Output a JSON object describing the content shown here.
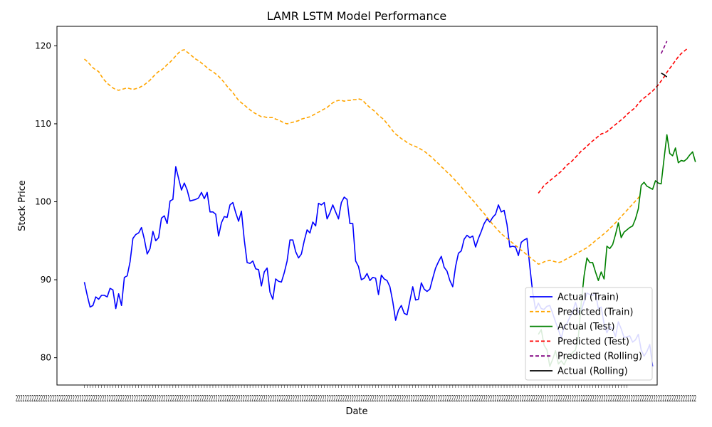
{
  "chart_data": {
    "type": "line",
    "title": "LAMR LSTM Model Performance",
    "xlabel": "Date",
    "ylabel": "Stock Price",
    "ylim": [
      76.5,
      122.5
    ],
    "xlim": [
      -9.6,
      200.6
    ],
    "yticks": [
      80,
      90,
      100,
      110,
      120
    ],
    "x_tick_label_text": "2",
    "legend_position": "lower-right",
    "colors": {
      "actual_train": "#0000ff",
      "predicted_train": "#ffa500",
      "actual_test": "#008000",
      "predicted_test": "#ff0000",
      "predicted_rolling": "#800080",
      "actual_rolling": "#000000"
    },
    "series": [
      {
        "name": "Actual (Train)",
        "style": "solid",
        "color": "#0000ff",
        "x_start": 0,
        "values": [
          89.7,
          88.0,
          86.5,
          86.7,
          87.8,
          87.5,
          88.0,
          88.0,
          87.8,
          88.9,
          88.7,
          86.3,
          88.2,
          86.7,
          90.3,
          90.5,
          92.3,
          95.3,
          95.8,
          96.0,
          96.7,
          95.2,
          93.3,
          94.0,
          96.2,
          95.0,
          95.4,
          97.9,
          98.2,
          97.2,
          100.1,
          100.3,
          104.5,
          103.0,
          101.5,
          102.4,
          101.5,
          100.1,
          100.2,
          100.3,
          100.5,
          101.2,
          100.4,
          101.2,
          98.7,
          98.7,
          98.4,
          95.6,
          97.3,
          98.1,
          98.0,
          99.6,
          99.9,
          98.6,
          97.5,
          98.8,
          95.1,
          92.2,
          92.1,
          92.4,
          91.4,
          91.3,
          89.2,
          91.0,
          91.5,
          88.4,
          87.5,
          90.1,
          89.8,
          89.7,
          90.9,
          92.4,
          95.1,
          95.1,
          93.6,
          92.8,
          93.3,
          95.0,
          96.4,
          96.0,
          97.4,
          96.9,
          99.8,
          99.6,
          99.9,
          97.8,
          98.6,
          99.6,
          98.7,
          97.8,
          99.9,
          100.6,
          100.3,
          97.2,
          97.2,
          92.4,
          91.7,
          90.0,
          90.2,
          90.8,
          89.9,
          90.3,
          90.2,
          88.1,
          90.6,
          90.1,
          89.9,
          89.1,
          87.2,
          84.8,
          86.1,
          86.7,
          85.7,
          85.5,
          87.3,
          89.1,
          87.4,
          87.5,
          89.6,
          88.8,
          88.5,
          88.8,
          90.2,
          91.5,
          92.3,
          93.0,
          91.6,
          91.1,
          89.9,
          89.1,
          91.7,
          93.4,
          93.7,
          95.2,
          95.7,
          95.4,
          95.6,
          94.2,
          95.3,
          96.2,
          97.2,
          97.8,
          97.4,
          98.0,
          98.4,
          99.6,
          98.7,
          98.9,
          97.1,
          94.2,
          94.3,
          94.2,
          93.1,
          94.8,
          95.1,
          95.3,
          91.7,
          88.4,
          86.2,
          87.0,
          86.3,
          86.2,
          86.6,
          86.7,
          85.7,
          84.6,
          83.6,
          82.5,
          84.0,
          84.4,
          85.2,
          85.9,
          87.1,
          85.8,
          86.0,
          87.2,
          88.3,
          88.1,
          88.0,
          88.3,
          86.3,
          86.5,
          84.3,
          83.2,
          84.0,
          83.7,
          82.7,
          84.6,
          83.7,
          82.6,
          82.7,
          82.8,
          82.0,
          82.3,
          83.0,
          81.0,
          80.2,
          80.8,
          81.7,
          78.9
        ]
      },
      {
        "name": "Predicted (Train)",
        "style": "dashed",
        "color": "#ffa500",
        "x_start": 0,
        "values": [
          118.3,
          118.0,
          117.6,
          117.2,
          116.9,
          116.7,
          116.1,
          115.6,
          115.2,
          114.9,
          114.6,
          114.4,
          114.3,
          114.4,
          114.5,
          114.6,
          114.5,
          114.4,
          114.5,
          114.6,
          114.8,
          115.0,
          115.3,
          115.6,
          116.0,
          116.4,
          116.7,
          116.9,
          117.2,
          117.6,
          117.9,
          118.3,
          118.7,
          119.1,
          119.4,
          119.5,
          119.2,
          118.9,
          118.6,
          118.3,
          118.1,
          117.8,
          117.5,
          117.2,
          116.9,
          116.7,
          116.4,
          116.1,
          115.7,
          115.3,
          114.8,
          114.4,
          114.0,
          113.5,
          113.0,
          112.7,
          112.4,
          112.1,
          111.8,
          111.5,
          111.3,
          111.1,
          110.9,
          110.9,
          110.8,
          110.8,
          110.8,
          110.6,
          110.5,
          110.3,
          110.1,
          110.0,
          110.1,
          110.2,
          110.3,
          110.4,
          110.6,
          110.7,
          110.8,
          110.9,
          111.1,
          111.3,
          111.5,
          111.7,
          111.9,
          112.1,
          112.4,
          112.7,
          112.9,
          113.0,
          113.0,
          112.9,
          113.0,
          113.0,
          113.1,
          113.1,
          113.2,
          113.1,
          112.8,
          112.4,
          112.1,
          111.8,
          111.5,
          111.1,
          110.8,
          110.5,
          110.0,
          109.6,
          109.1,
          108.7,
          108.4,
          108.1,
          107.9,
          107.6,
          107.4,
          107.2,
          107.1,
          106.9,
          106.7,
          106.5,
          106.2,
          105.9,
          105.6,
          105.2,
          104.9,
          104.5,
          104.2,
          103.8,
          103.5,
          103.1,
          102.7,
          102.3,
          101.9,
          101.4,
          101.0,
          100.6,
          100.2,
          99.8,
          99.3,
          98.9,
          98.5,
          98.0,
          97.6,
          97.1,
          96.7,
          96.3,
          95.9,
          95.6,
          95.3,
          95.0,
          94.7,
          94.4,
          94.1,
          93.8,
          93.5,
          93.2,
          92.9,
          92.6,
          92.3,
          92.0,
          92.1,
          92.3,
          92.4,
          92.5,
          92.4,
          92.3,
          92.2,
          92.3,
          92.5,
          92.7,
          92.9,
          93.1,
          93.3,
          93.5,
          93.7,
          93.9,
          94.1,
          94.4,
          94.7,
          95.0,
          95.3,
          95.6,
          95.9,
          96.2,
          96.6,
          96.9,
          97.3,
          97.7,
          98.1,
          98.5,
          98.9,
          99.3,
          99.7,
          100.1,
          100.5,
          100.9
        ]
      },
      {
        "name": "Actual (Test)",
        "style": "solid",
        "color": "#008000",
        "x_start": 159,
        "values": [
          83.0,
          83.6,
          81.6,
          81.0,
          78.9,
          79.8,
          80.9,
          79.2,
          79.6,
          79.1,
          79.9,
          80.2,
          80.7,
          81.0,
          82.7,
          87.0,
          90.5,
          92.8,
          92.2,
          92.2,
          91.0,
          89.9,
          91.0,
          90.1,
          94.3,
          94.0,
          94.5,
          95.8,
          97.3,
          95.4,
          96.1,
          96.4,
          96.7,
          96.9,
          97.8,
          99.1,
          102.1,
          102.5,
          102.0,
          101.8,
          101.6,
          102.7,
          102.4,
          102.3,
          105.5,
          108.6,
          106.2,
          105.9,
          106.9,
          105.0,
          105.3,
          105.2,
          105.5,
          106.0,
          106.4,
          105.1
        ]
      },
      {
        "name": "Predicted (Test)",
        "style": "dashed",
        "color": "#ff0000",
        "x_start": 159,
        "values": [
          101.1,
          101.6,
          102.1,
          102.4,
          102.7,
          103.0,
          103.3,
          103.6,
          103.9,
          104.3,
          104.7,
          105.0,
          105.3,
          105.7,
          106.1,
          106.5,
          106.8,
          107.1,
          107.5,
          107.8,
          108.1,
          108.4,
          108.7,
          108.8,
          109.0,
          109.3,
          109.6,
          109.9,
          110.2,
          110.5,
          110.8,
          111.2,
          111.5,
          111.8,
          112.1,
          112.6,
          113.0,
          113.3,
          113.6,
          113.9,
          114.2,
          114.6,
          115.0,
          115.5,
          116.0,
          116.6,
          117.1,
          117.6,
          118.1,
          118.6,
          119.0,
          119.3,
          119.6
        ]
      },
      {
        "name": "Predicted (Rolling)",
        "style": "dashed",
        "color": "#800080",
        "x_start": 202,
        "values": [
          119.0,
          119.8,
          120.6
        ]
      },
      {
        "name": "Actual (Rolling)",
        "style": "solid",
        "color": "#000000",
        "x_start": 202,
        "values": [
          116.5,
          116.3,
          116.0
        ]
      }
    ]
  }
}
